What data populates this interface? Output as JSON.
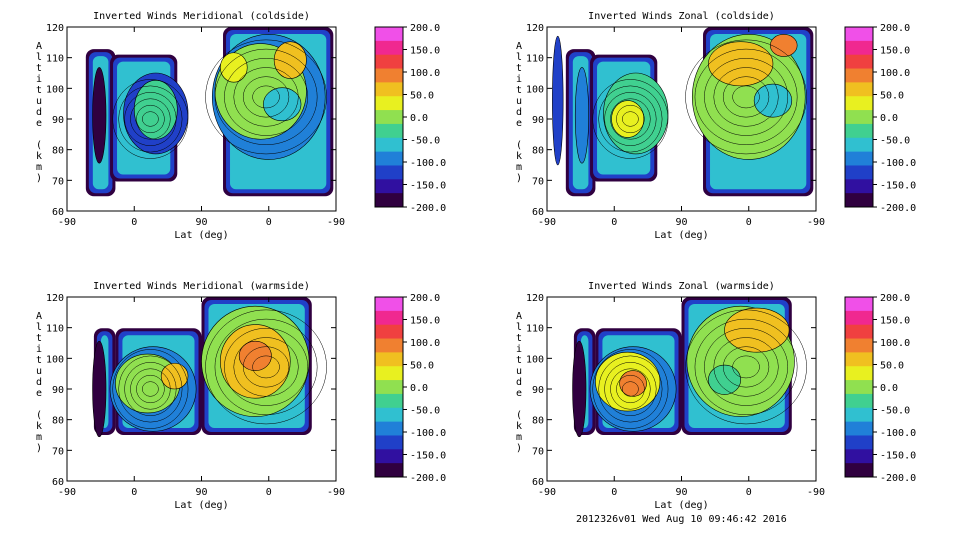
{
  "footer": "2012326v01 Wed Aug 10 09:46:42 2016",
  "colorbar": {
    "labels": [
      "200.0",
      "150.0",
      "100.0",
      "50.0",
      "0.0",
      "-50.0",
      "-100.0",
      "-150.0",
      "-200.0"
    ],
    "colors": [
      "#f050e8",
      "#f02890",
      "#f04040",
      "#f08030",
      "#f0c020",
      "#e8f020",
      "#90e050",
      "#40d090",
      "#30c0d0",
      "#2080d8",
      "#2040c8",
      "#3010a0",
      "#300040"
    ]
  },
  "chart_data": [
    {
      "type": "heatmap",
      "title": "Inverted Winds Meridional (coldside)",
      "xlabel": "Lat (deg)",
      "ylabel": "Altitude (km)",
      "xticks": [
        "-90",
        "0",
        "90",
        "0",
        "-90"
      ],
      "yticks": [
        "60",
        "70",
        "80",
        "90",
        "100",
        "110",
        "120"
      ],
      "ylim": [
        60,
        120
      ],
      "zlim": [
        -200,
        200
      ]
    },
    {
      "type": "heatmap",
      "title": "Inverted Winds Zonal (coldside)",
      "xlabel": "Lat (deg)",
      "ylabel": "Altitude (km)",
      "xticks": [
        "-90",
        "0",
        "90",
        "0",
        "-90"
      ],
      "yticks": [
        "60",
        "70",
        "80",
        "90",
        "100",
        "110",
        "120"
      ],
      "ylim": [
        60,
        120
      ],
      "zlim": [
        -200,
        200
      ]
    },
    {
      "type": "heatmap",
      "title": "Inverted Winds Meridional (warmside)",
      "xlabel": "Lat (deg)",
      "ylabel": "Altitude (km)",
      "xticks": [
        "-90",
        "0",
        "90",
        "0",
        "-90"
      ],
      "yticks": [
        "60",
        "70",
        "80",
        "90",
        "100",
        "110",
        "120"
      ],
      "ylim": [
        60,
        120
      ],
      "zlim": [
        -200,
        200
      ]
    },
    {
      "type": "heatmap",
      "title": "Inverted Winds Zonal (warmside)",
      "xlabel": "Lat (deg)",
      "ylabel": "Altitude (km)",
      "xticks": [
        "-90",
        "0",
        "90",
        "0",
        "-90"
      ],
      "yticks": [
        "60",
        "70",
        "80",
        "90",
        "100",
        "110",
        "120"
      ],
      "ylim": [
        60,
        120
      ],
      "zlim": [
        -200,
        200
      ]
    }
  ]
}
